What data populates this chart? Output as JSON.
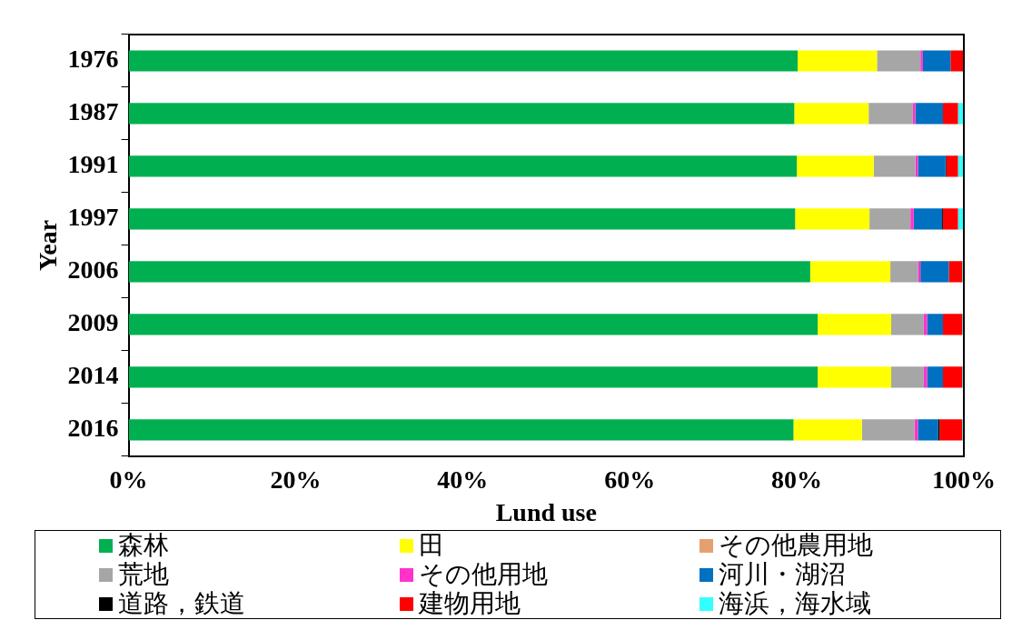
{
  "chart_data": {
    "type": "bar",
    "orientation": "horizontal",
    "stacked": true,
    "xlabel": "Lund use",
    "ylabel": "Year",
    "categories": [
      "1976",
      "1987",
      "1991",
      "1997",
      "2006",
      "2009",
      "2014",
      "2016"
    ],
    "xlim": [
      0,
      100
    ],
    "xticks": [
      {
        "value": 0,
        "label": "0%"
      },
      {
        "value": 20,
        "label": "20%"
      },
      {
        "value": 40,
        "label": "40%"
      },
      {
        "value": 60,
        "label": "60%"
      },
      {
        "value": 80,
        "label": "80%"
      },
      {
        "value": 100,
        "label": "100%"
      }
    ],
    "grid": false,
    "legend": "bottom",
    "series": [
      {
        "name": "森林",
        "color": "#00b050",
        "values": [
          80.1,
          79.7,
          80.0,
          79.8,
          81.6,
          82.5,
          82.5,
          79.6
        ]
      },
      {
        "name": "田",
        "color": "#ffff00",
        "values": [
          9.5,
          8.9,
          9.2,
          8.9,
          9.6,
          8.8,
          8.8,
          8.2
        ]
      },
      {
        "name": "その他農用地",
        "color": "#e6a06e",
        "values": [
          0,
          0,
          0,
          0,
          0,
          0,
          0,
          0
        ]
      },
      {
        "name": "荒地",
        "color": "#a6a6a6",
        "values": [
          5.2,
          5.3,
          5.0,
          4.9,
          3.3,
          3.9,
          3.9,
          6.3
        ]
      },
      {
        "name": "その他用地",
        "color": "#ff33cc",
        "values": [
          0.3,
          0.3,
          0.3,
          0.4,
          0.3,
          0.4,
          0.4,
          0.4
        ]
      },
      {
        "name": "河川・湖沼",
        "color": "#0070c0",
        "values": [
          3.3,
          3.3,
          3.3,
          3.4,
          3.4,
          1.9,
          1.9,
          2.4
        ]
      },
      {
        "name": "道路，鉄道",
        "color": "#000000",
        "values": [
          0,
          0,
          0.1,
          0.1,
          0,
          0,
          0,
          0.2
        ]
      },
      {
        "name": "建物用地",
        "color": "#ff0000",
        "values": [
          1.6,
          1.8,
          1.4,
          1.8,
          1.6,
          2.3,
          2.3,
          2.7
        ]
      },
      {
        "name": "海浜，海水域",
        "color": "#33ffff",
        "values": [
          0,
          0.7,
          0.7,
          0.7,
          0.2,
          0.2,
          0.2,
          0.2
        ]
      }
    ]
  }
}
